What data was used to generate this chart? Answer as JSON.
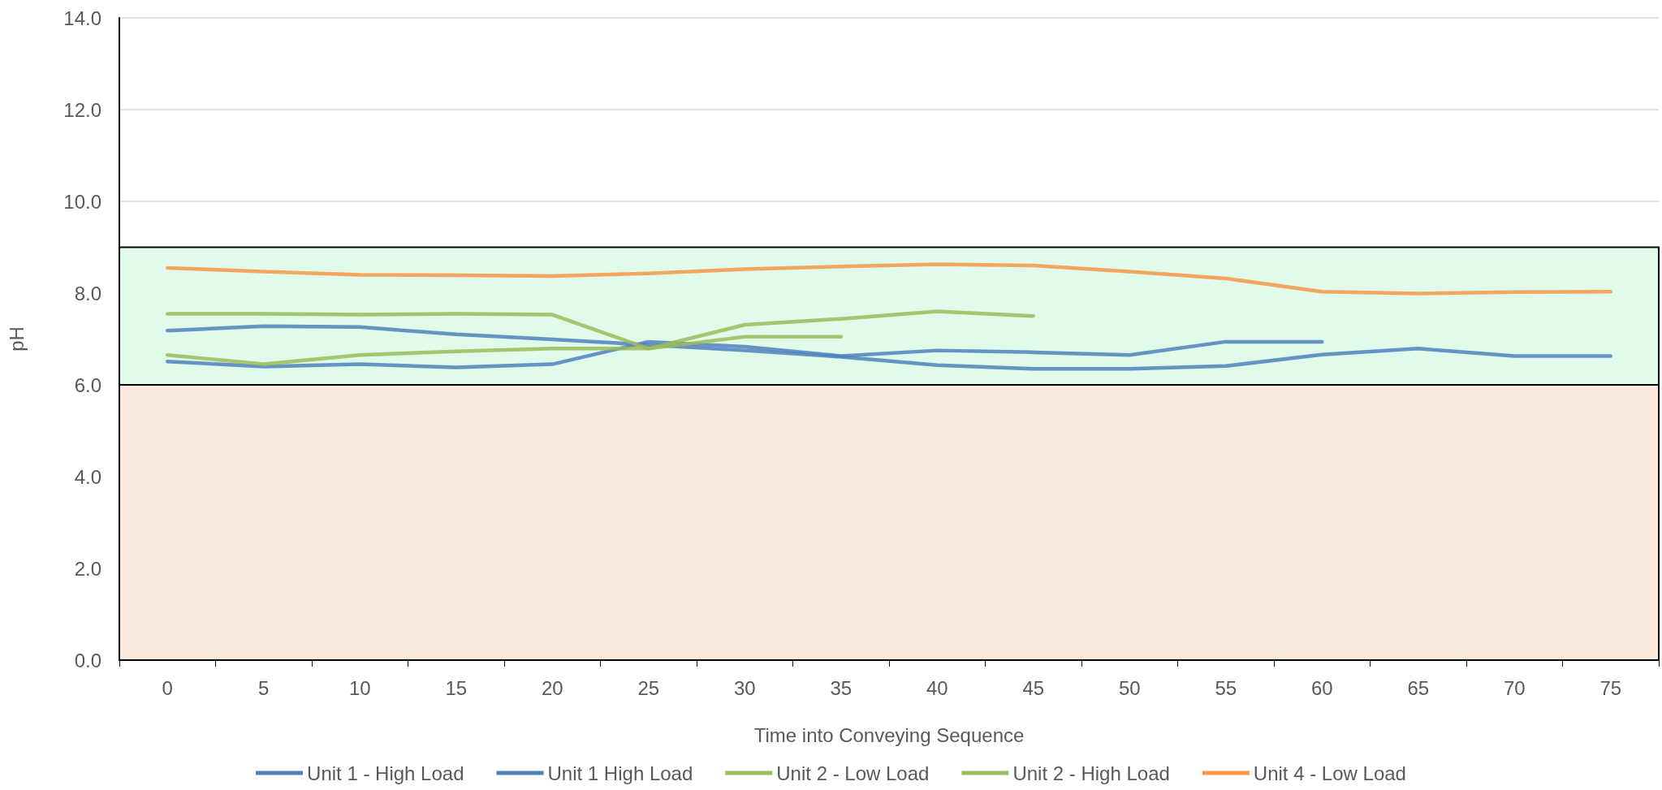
{
  "chart_data": {
    "type": "line",
    "xlabel": "Time into Conveying Sequence",
    "ylabel": "pH",
    "categories": [
      "0",
      "5",
      "10",
      "15",
      "20",
      "25",
      "30",
      "35",
      "40",
      "45",
      "50",
      "55",
      "60",
      "65",
      "70",
      "75"
    ],
    "series": [
      {
        "name": "Unit 1 - High Load",
        "color": "#4f81bd",
        "values": [
          7.18,
          7.28,
          7.26,
          7.1,
          6.99,
          6.87,
          6.75,
          6.61,
          6.43,
          6.35,
          6.35,
          6.41,
          6.66,
          6.79,
          6.63,
          6.63
        ]
      },
      {
        "name": "Unit 1 High Load",
        "color": "#4f81bd",
        "values": [
          6.51,
          6.4,
          6.45,
          6.38,
          6.45,
          6.94,
          6.83,
          6.63,
          6.75,
          6.71,
          6.65,
          6.94,
          6.94,
          null,
          null,
          null
        ]
      },
      {
        "name": "Unit 2 - Low Load",
        "color": "#9bbb59",
        "values": [
          6.65,
          6.45,
          6.65,
          6.73,
          6.79,
          6.79,
          7.05,
          7.05,
          null,
          null,
          null,
          null,
          null,
          null,
          null,
          null
        ]
      },
      {
        "name": "Unit 2 - High Load",
        "color": "#9bbb59",
        "values": [
          7.55,
          7.55,
          7.53,
          7.55,
          7.53,
          6.79,
          7.31,
          7.44,
          7.6,
          7.5,
          null,
          null,
          null,
          null,
          null,
          null
        ]
      },
      {
        "name": "Unit 4 - Low Load",
        "color": "#f79646",
        "values": [
          8.55,
          8.47,
          8.4,
          8.39,
          8.37,
          8.43,
          8.52,
          8.58,
          8.63,
          8.6,
          8.47,
          8.32,
          8.03,
          7.99,
          8.02,
          8.03
        ]
      }
    ],
    "ylim": [
      0,
      14
    ],
    "yticks": [
      {
        "value": 0,
        "label": "0.0"
      },
      {
        "value": 2,
        "label": "2.0"
      },
      {
        "value": 4,
        "label": "4.0"
      },
      {
        "value": 6,
        "label": "6.0"
      },
      {
        "value": 8,
        "label": "8.0"
      },
      {
        "value": 10,
        "label": "10.0"
      },
      {
        "value": 12,
        "label": "12.0"
      },
      {
        "value": 14,
        "label": "14.0"
      }
    ],
    "bands": [
      {
        "axis": "y",
        "from": 6,
        "to": 9,
        "color": "#e0fbe9"
      },
      {
        "axis": "y",
        "from": 0,
        "to": 6,
        "color": "#fbeadb"
      }
    ],
    "grid": "y",
    "legend": "bottom",
    "marker": "none",
    "line_style": "solid"
  }
}
